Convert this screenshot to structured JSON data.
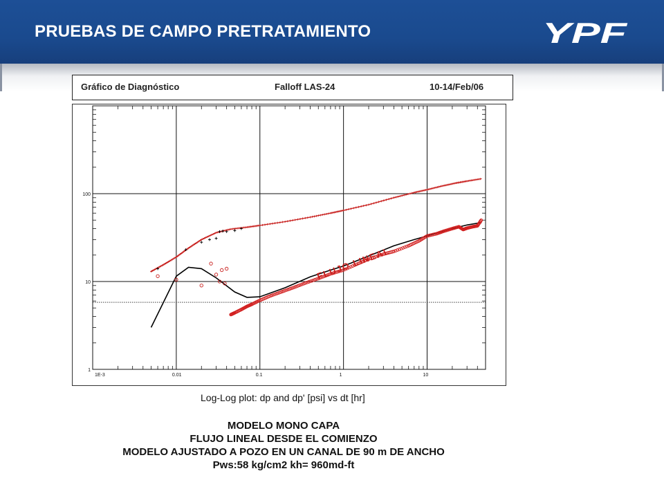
{
  "slide": {
    "title": "PRUEBAS DE CAMPO PRETRATAMIENTO",
    "logo_text": "YPF"
  },
  "chart_header": {
    "left": "Gráfico de Diagnóstico",
    "center": "Falloff LAS-24",
    "right": "10-14/Feb/06"
  },
  "chart_data": {
    "type": "scatter",
    "title": "",
    "xlabel": "",
    "ylabel": "",
    "x_scale": "log",
    "y_scale": "log",
    "xlim": [
      0.001,
      50
    ],
    "ylim": [
      1,
      1000
    ],
    "x_tick_labels": [
      "1E-3",
      "0.01",
      "0.1",
      "1",
      "10"
    ],
    "y_tick_labels": [
      "1",
      "10",
      "100"
    ],
    "grid": true,
    "caption": "Log-Log plot: dp and dp' [psi] vs dt [hr]",
    "annotation": "FLUJO LINEAL",
    "reference_line_y": 5.8,
    "series": [
      {
        "kind": "pressure_model",
        "color": "#c8201e",
        "points": [
          [
            0.005,
            13
          ],
          [
            0.007,
            15.5
          ],
          [
            0.01,
            19
          ],
          [
            0.014,
            24
          ],
          [
            0.02,
            30
          ],
          [
            0.03,
            36
          ],
          [
            0.045,
            39.5
          ],
          [
            0.07,
            41.5
          ],
          [
            0.1,
            43.5
          ],
          [
            0.2,
            48
          ],
          [
            0.4,
            54
          ],
          [
            0.7,
            60
          ],
          [
            1,
            64.5
          ],
          [
            2,
            75
          ],
          [
            4,
            90
          ],
          [
            7,
            103
          ],
          [
            10,
            111
          ],
          [
            15,
            122
          ],
          [
            22,
            132
          ],
          [
            30,
            139
          ],
          [
            45,
            148
          ]
        ]
      },
      {
        "kind": "pressure_measured",
        "color": "#000000",
        "points": [
          [
            0.006,
            14
          ],
          [
            0.013,
            23
          ],
          [
            0.02,
            28
          ],
          [
            0.025,
            30
          ],
          [
            0.03,
            31
          ],
          [
            0.033,
            37
          ],
          [
            0.036,
            37.5
          ],
          [
            0.04,
            37
          ],
          [
            0.05,
            38
          ],
          [
            0.06,
            40
          ]
        ]
      },
      {
        "kind": "derivative_model",
        "color": "#000000",
        "points": [
          [
            0.005,
            3
          ],
          [
            0.01,
            11.5
          ],
          [
            0.014,
            14.5
          ],
          [
            0.02,
            14
          ],
          [
            0.03,
            11
          ],
          [
            0.05,
            7.6
          ],
          [
            0.07,
            6.6
          ],
          [
            0.1,
            6.7
          ],
          [
            0.2,
            8.5
          ],
          [
            0.4,
            11.3
          ],
          [
            0.7,
            13.5
          ],
          [
            1,
            15
          ],
          [
            2,
            19.5
          ],
          [
            4,
            25.5
          ],
          [
            7,
            30
          ],
          [
            10,
            33
          ],
          [
            15,
            37
          ],
          [
            20,
            40
          ],
          [
            30,
            44
          ],
          [
            45,
            47
          ]
        ]
      },
      {
        "kind": "derivative_measured",
        "color": "#d22020",
        "points": [
          [
            0.045,
            4.2
          ],
          [
            0.05,
            4.4
          ],
          [
            0.06,
            4.8
          ],
          [
            0.07,
            5.2
          ],
          [
            0.08,
            5.5
          ],
          [
            0.1,
            6.1
          ],
          [
            0.13,
            6.8
          ],
          [
            0.18,
            7.6
          ],
          [
            0.25,
            8.5
          ],
          [
            0.35,
            9.6
          ],
          [
            0.5,
            10.8
          ],
          [
            0.7,
            12.2
          ],
          [
            1,
            13.5
          ],
          [
            1.5,
            16
          ],
          [
            2,
            18
          ],
          [
            3,
            20.5
          ],
          [
            4,
            22
          ],
          [
            6,
            25.5
          ],
          [
            8,
            29
          ],
          [
            10,
            33
          ],
          [
            13,
            35
          ],
          [
            16,
            37.5
          ],
          [
            20,
            40
          ],
          [
            24,
            42
          ],
          [
            27,
            39
          ],
          [
            30,
            40.5
          ],
          [
            35,
            42
          ],
          [
            40,
            43
          ],
          [
            45,
            51
          ]
        ]
      },
      {
        "kind": "derivative_outliers",
        "color": "#c8201e",
        "points": [
          [
            0.006,
            11.5
          ],
          [
            0.01,
            10.5
          ],
          [
            0.02,
            9
          ],
          [
            0.026,
            16
          ],
          [
            0.03,
            12
          ],
          [
            0.033,
            10
          ],
          [
            0.035,
            13.5
          ],
          [
            0.038,
            9.5
          ],
          [
            0.04,
            14
          ]
        ]
      }
    ]
  }
}
